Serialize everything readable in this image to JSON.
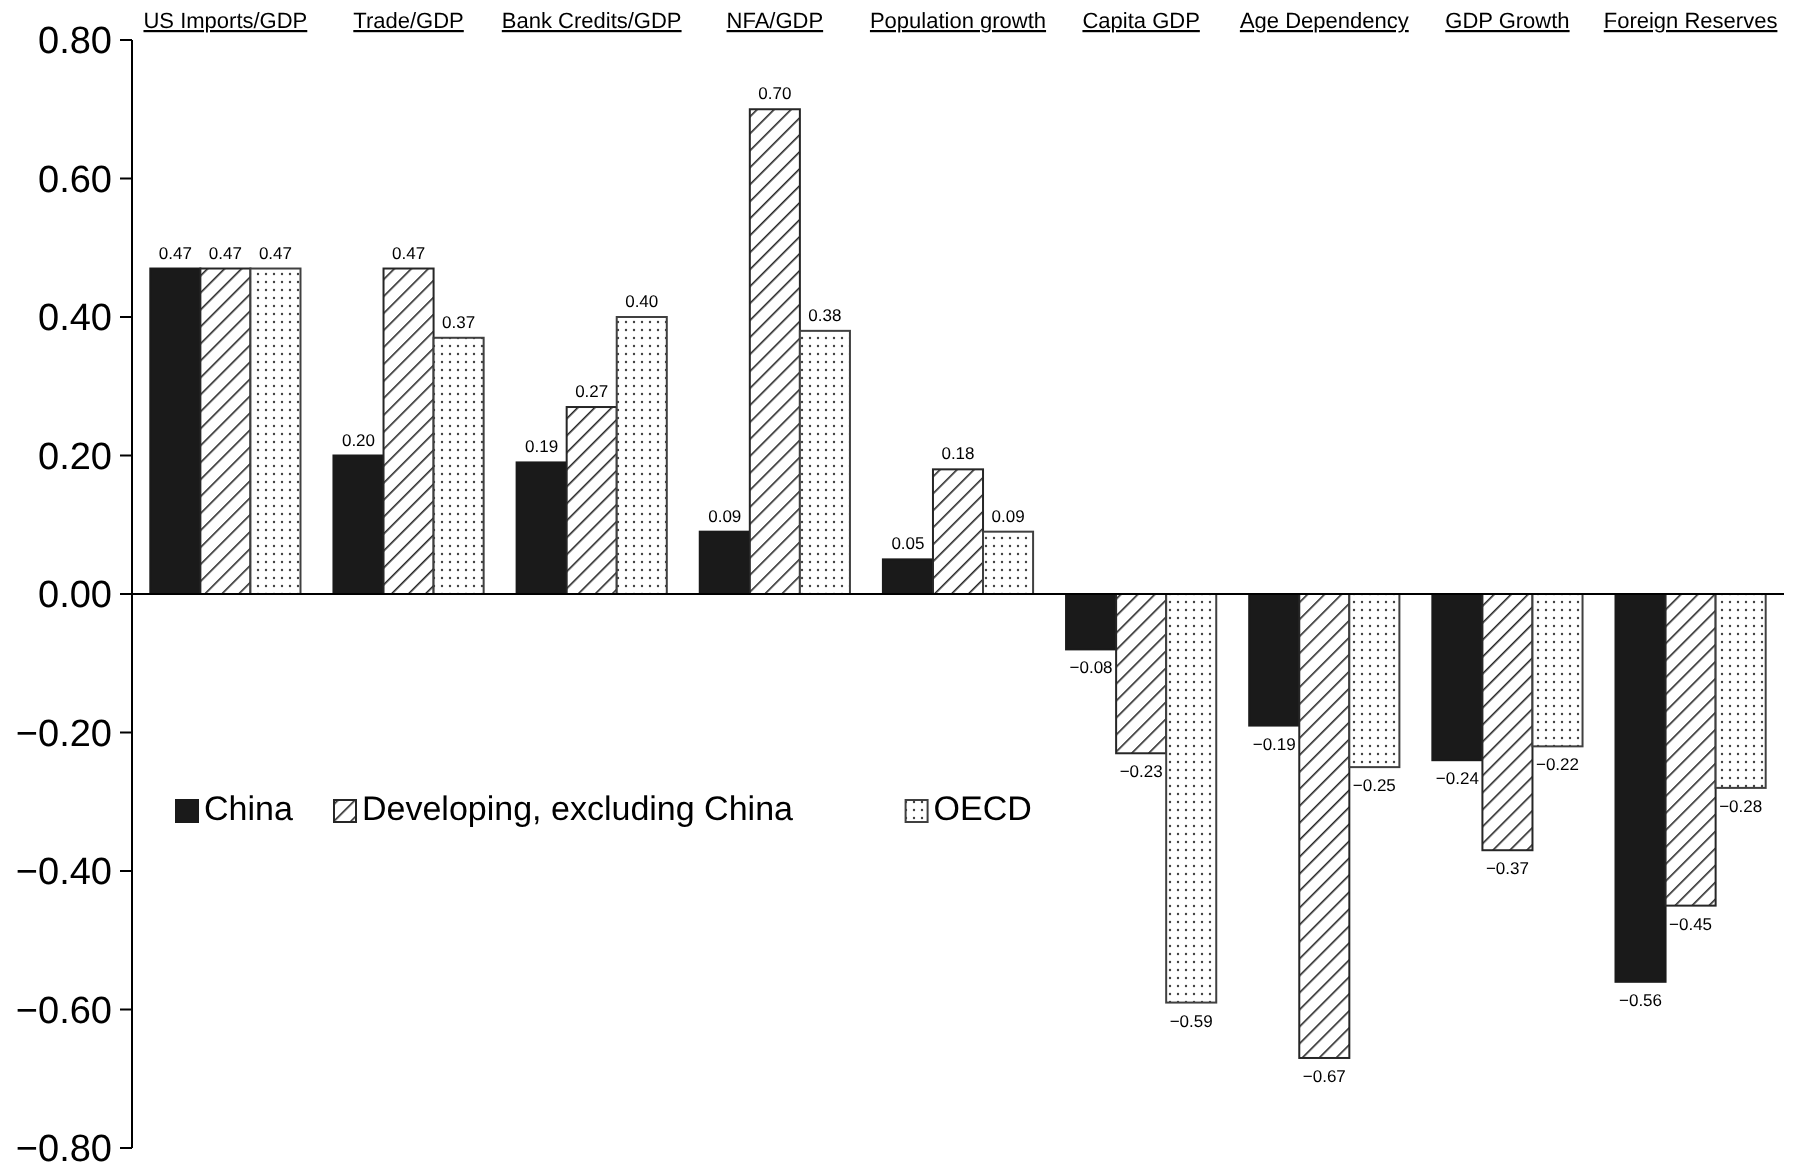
{
  "chart_data": {
    "type": "bar",
    "categories": [
      "US Imports/GDP",
      "Trade/GDP",
      "Bank Credits/GDP",
      "NFA/GDP",
      "Population growth",
      "Capita GDP",
      "Age Dependency",
      "GDP Growth",
      "Foreign Reserves"
    ],
    "series": [
      {
        "name": "China",
        "color": "#1a1a1a",
        "values": [
          0.47,
          0.2,
          0.19,
          0.09,
          0.05,
          -0.08,
          -0.19,
          -0.24,
          -0.56
        ],
        "value_labels": [
          "0.47",
          "0.20",
          "0.19",
          "0.09",
          "0.05",
          "−0.08",
          "−0.19",
          "−0.24",
          "−0.56"
        ]
      },
      {
        "name": "Developing, excluding China",
        "color": "#262626",
        "values": [
          0.47,
          0.47,
          0.27,
          0.7,
          0.18,
          -0.23,
          -0.67,
          -0.37,
          -0.45
        ],
        "value_labels": [
          "0.47",
          "0.47",
          "0.27",
          "0.70",
          "0.18",
          "−0.23",
          "−0.67",
          "−0.37",
          "−0.45"
        ]
      },
      {
        "name": "OECD",
        "color": "#404040",
        "values": [
          0.47,
          0.37,
          0.4,
          0.38,
          0.09,
          -0.59,
          -0.25,
          -0.22,
          -0.28
        ],
        "value_labels": [
          "0.47",
          "0.37",
          "0.40",
          "0.38",
          "0.09",
          "−0.59",
          "−0.25",
          "−0.22",
          "−0.28"
        ]
      }
    ],
    "ylim": [
      -0.8,
      0.8
    ],
    "yticks": [
      {
        "value": -0.8,
        "label": "−0.80"
      },
      {
        "value": -0.6,
        "label": "−0.60"
      },
      {
        "value": -0.4,
        "label": "−0.40"
      },
      {
        "value": -0.2,
        "label": "−0.20"
      },
      {
        "value": 0,
        "label": "0.00"
      },
      {
        "value": 0.2,
        "label": "0.20"
      },
      {
        "value": 0.4,
        "label": "0.40"
      },
      {
        "value": 0.6,
        "label": "0.60"
      },
      {
        "value": 0.8,
        "label": "0.80"
      }
    ],
    "legend": "left"
  }
}
